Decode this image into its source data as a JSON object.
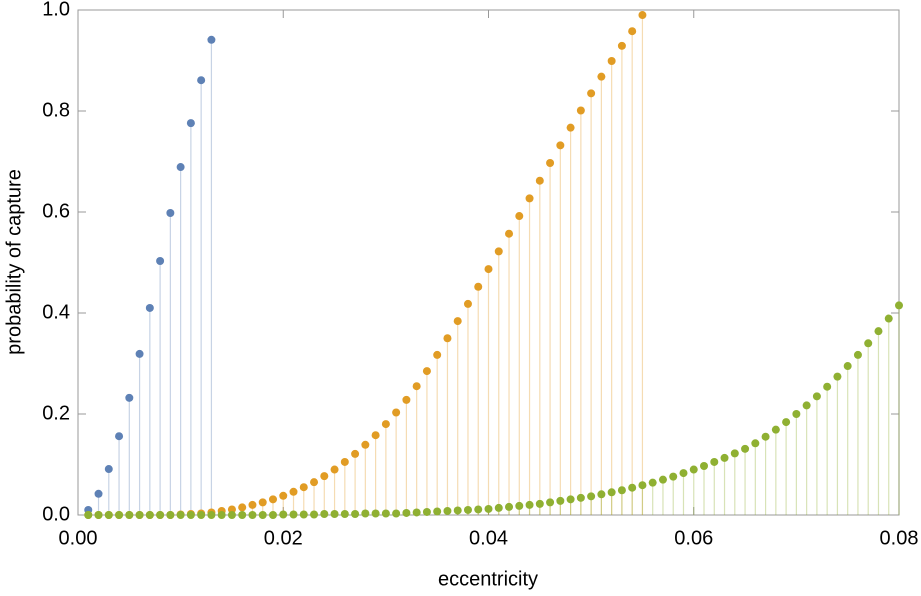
{
  "chart_data": {
    "type": "stem-scatter",
    "xlabel": "eccentricity",
    "ylabel": "probability of capture",
    "xlim": [
      0,
      0.08
    ],
    "ylim": [
      0,
      1.0
    ],
    "xticks": [
      {
        "value": 0,
        "label": "0.00"
      },
      {
        "value": 0.02,
        "label": "0.02"
      },
      {
        "value": 0.04,
        "label": "0.04"
      },
      {
        "value": 0.06,
        "label": "0.06"
      },
      {
        "value": 0.08,
        "label": "0.08"
      }
    ],
    "yticks": [
      {
        "value": 0,
        "label": "0.0"
      },
      0.2,
      0.4,
      0.6,
      0.8,
      {
        "value": 1.0,
        "label": "1.0"
      }
    ],
    "series": [
      {
        "color": "#5e81b5",
        "x": [
          0.001,
          0.002,
          0.003,
          0.004,
          0.005,
          0.006,
          0.007,
          0.008,
          0.009,
          0.01,
          0.011,
          0.012,
          0.013
        ],
        "values": [
          0.01,
          0.042,
          0.091,
          0.156,
          0.232,
          0.319,
          0.41,
          0.503,
          0.598,
          0.689,
          0.776,
          0.861,
          0.941
        ]
      },
      {
        "color": "#e19c24",
        "x": [
          0.001,
          0.002,
          0.003,
          0.004,
          0.005,
          0.006,
          0.007,
          0.008,
          0.009,
          0.01,
          0.011,
          0.012,
          0.013,
          0.014,
          0.015,
          0.016,
          0.017,
          0.018,
          0.019,
          0.02,
          0.021,
          0.022,
          0.023,
          0.024,
          0.025,
          0.026,
          0.027,
          0.028,
          0.029,
          0.03,
          0.031,
          0.032,
          0.033,
          0.034,
          0.035,
          0.036,
          0.037,
          0.038,
          0.039,
          0.04,
          0.041,
          0.042,
          0.043,
          0.044,
          0.045,
          0.046,
          0.047,
          0.048,
          0.049,
          0.05,
          0.051,
          0.052,
          0.053,
          0.054,
          0.055
        ],
        "values": [
          0,
          0,
          0,
          0,
          0,
          0,
          0,
          0,
          0,
          0.001,
          0.002,
          0.003,
          0.005,
          0.008,
          0.011,
          0.015,
          0.02,
          0.025,
          0.031,
          0.038,
          0.046,
          0.055,
          0.065,
          0.077,
          0.09,
          0.105,
          0.121,
          0.139,
          0.158,
          0.18,
          0.203,
          0.228,
          0.255,
          0.285,
          0.317,
          0.35,
          0.384,
          0.418,
          0.452,
          0.487,
          0.522,
          0.557,
          0.592,
          0.627,
          0.662,
          0.697,
          0.732,
          0.767,
          0.801,
          0.835,
          0.868,
          0.899,
          0.929,
          0.958,
          0.99
        ]
      },
      {
        "color": "#8fb032",
        "x": [
          0.001,
          0.002,
          0.003,
          0.004,
          0.005,
          0.006,
          0.007,
          0.008,
          0.009,
          0.01,
          0.011,
          0.012,
          0.013,
          0.014,
          0.015,
          0.016,
          0.017,
          0.018,
          0.019,
          0.02,
          0.021,
          0.022,
          0.023,
          0.024,
          0.025,
          0.026,
          0.027,
          0.028,
          0.029,
          0.03,
          0.031,
          0.032,
          0.033,
          0.034,
          0.035,
          0.036,
          0.037,
          0.038,
          0.039,
          0.04,
          0.041,
          0.042,
          0.043,
          0.044,
          0.045,
          0.046,
          0.047,
          0.048,
          0.049,
          0.05,
          0.051,
          0.052,
          0.053,
          0.054,
          0.055,
          0.056,
          0.057,
          0.058,
          0.059,
          0.06,
          0.061,
          0.062,
          0.063,
          0.064,
          0.065,
          0.066,
          0.067,
          0.068,
          0.069,
          0.07,
          0.071,
          0.072,
          0.073,
          0.074,
          0.075,
          0.076,
          0.077,
          0.078,
          0.079,
          0.08
        ],
        "values": [
          0,
          0,
          0,
          0,
          0,
          0,
          0,
          0,
          0,
          0,
          0,
          0,
          0,
          0,
          0,
          0,
          0,
          0,
          0,
          0.001,
          0.001,
          0.001,
          0.001,
          0.002,
          0.002,
          0.002,
          0.002,
          0.003,
          0.003,
          0.003,
          0.003,
          0.004,
          0.005,
          0.006,
          0.007,
          0.008,
          0.009,
          0.01,
          0.011,
          0.012,
          0.014,
          0.016,
          0.018,
          0.02,
          0.022,
          0.025,
          0.028,
          0.031,
          0.034,
          0.037,
          0.041,
          0.045,
          0.049,
          0.054,
          0.059,
          0.064,
          0.07,
          0.076,
          0.083,
          0.09,
          0.097,
          0.105,
          0.113,
          0.122,
          0.131,
          0.142,
          0.155,
          0.169,
          0.184,
          0.2,
          0.217,
          0.235,
          0.254,
          0.274,
          0.295,
          0.317,
          0.34,
          0.364,
          0.389,
          0.415
        ]
      }
    ]
  }
}
